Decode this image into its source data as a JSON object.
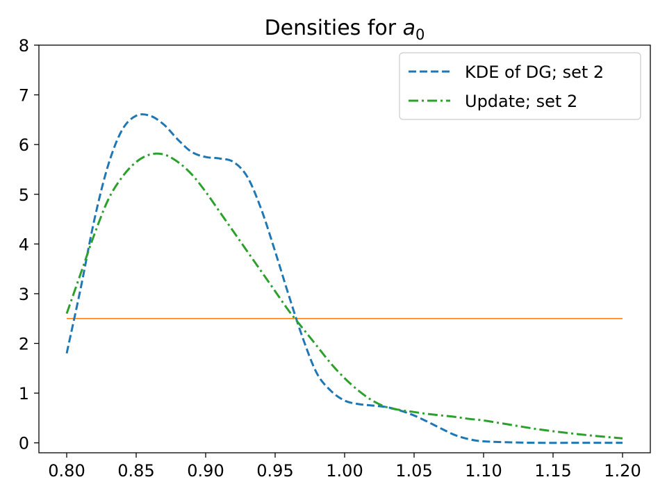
{
  "chart_data": {
    "type": "line",
    "title": "Densities for",
    "title_symbol": "a",
    "title_subscript": "0",
    "xlabel": "",
    "ylabel": "",
    "xlim": [
      0.78,
      1.22
    ],
    "ylim": [
      -0.2,
      8.0
    ],
    "x_ticks": [
      "0.80",
      "0.85",
      "0.90",
      "0.95",
      "1.00",
      "1.05",
      "1.10",
      "1.15",
      "1.20"
    ],
    "y_ticks": [
      "0",
      "1",
      "2",
      "3",
      "4",
      "5",
      "6",
      "7",
      "8"
    ],
    "grid": false,
    "legend_position": "top-right",
    "series": [
      {
        "name": "KDE of DG; set 2",
        "color": "#1f77b4",
        "style": "dashed",
        "x": [
          0.8,
          0.81,
          0.82,
          0.83,
          0.84,
          0.85,
          0.86,
          0.87,
          0.88,
          0.89,
          0.9,
          0.91,
          0.92,
          0.93,
          0.94,
          0.95,
          0.96,
          0.97,
          0.98,
          0.99,
          1.0,
          1.01,
          1.02,
          1.03,
          1.04,
          1.05,
          1.06,
          1.07,
          1.08,
          1.09,
          1.1,
          1.12,
          1.14,
          1.16,
          1.18,
          1.2
        ],
        "y": [
          1.8,
          3.1,
          4.5,
          5.6,
          6.3,
          6.58,
          6.58,
          6.4,
          6.1,
          5.85,
          5.75,
          5.72,
          5.65,
          5.35,
          4.7,
          3.85,
          2.95,
          2.1,
          1.4,
          1.05,
          0.85,
          0.78,
          0.75,
          0.72,
          0.65,
          0.55,
          0.42,
          0.28,
          0.15,
          0.07,
          0.03,
          0.01,
          0.0,
          0.0,
          0.0,
          0.0
        ]
      },
      {
        "name": "Update; set 2",
        "color": "#2ca02c",
        "style": "dashdot",
        "x": [
          0.8,
          0.81,
          0.82,
          0.83,
          0.84,
          0.85,
          0.86,
          0.87,
          0.88,
          0.89,
          0.9,
          0.91,
          0.92,
          0.93,
          0.94,
          0.95,
          0.96,
          0.97,
          0.98,
          0.99,
          1.0,
          1.01,
          1.02,
          1.03,
          1.04,
          1.05,
          1.06,
          1.07,
          1.08,
          1.09,
          1.1,
          1.12,
          1.14,
          1.16,
          1.18,
          1.2
        ],
        "y": [
          2.6,
          3.4,
          4.2,
          4.9,
          5.35,
          5.65,
          5.8,
          5.8,
          5.65,
          5.4,
          5.05,
          4.65,
          4.25,
          3.85,
          3.45,
          3.05,
          2.65,
          2.3,
          1.95,
          1.6,
          1.3,
          1.05,
          0.85,
          0.72,
          0.66,
          0.62,
          0.58,
          0.55,
          0.52,
          0.48,
          0.45,
          0.36,
          0.27,
          0.2,
          0.14,
          0.09
        ]
      },
      {
        "name": "",
        "color": "#ff7f0e",
        "style": "solid",
        "x": [
          0.8,
          1.2
        ],
        "y": [
          2.5,
          2.5
        ]
      }
    ]
  }
}
